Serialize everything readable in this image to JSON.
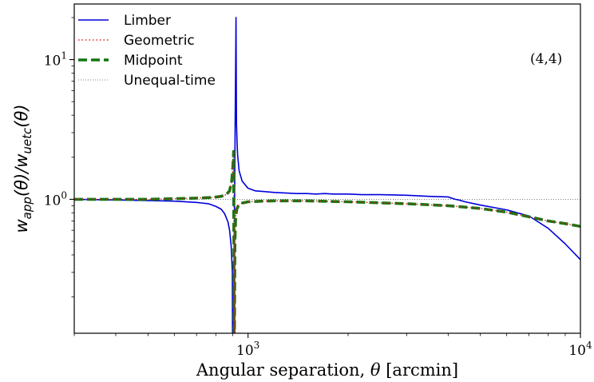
{
  "chart_data": {
    "type": "line",
    "x_scale": "log",
    "y_scale": "log",
    "xlim": [
      300,
      10000
    ],
    "ylim": [
      0.11,
      25
    ],
    "xlabel_prefix": "Angular separation, ",
    "xlabel_symbol": "θ",
    "xlabel_suffix": " [arcmin]",
    "ylabel": "wapp(θ)/wuetc(θ)",
    "ylabel_parts": {
      "w1": "w",
      "sub1": "app",
      "mid": "(θ)/",
      "w2": "w",
      "sub2": "uetc",
      "end": "(θ)"
    },
    "x_ticks": [
      {
        "base": "10",
        "exp": "3",
        "value": 1000
      },
      {
        "base": "10",
        "exp": "4",
        "value": 10000
      }
    ],
    "y_ticks": [
      {
        "base": "10",
        "exp": "0",
        "value": 1
      },
      {
        "base": "10",
        "exp": "1",
        "value": 10
      }
    ],
    "annotation": "(4,4)",
    "legend_position": "top-left",
    "grid": false,
    "series": [
      {
        "name": "Limber",
        "color": "#0000dd",
        "style": "solid",
        "x": [
          300,
          400,
          500,
          600,
          700,
          760,
          800,
          830,
          850,
          870,
          880,
          890,
          897,
          898,
          905,
          915,
          918,
          920,
          923,
          927,
          930,
          940,
          960,
          1000,
          1050,
          1100,
          1200,
          1400,
          1500,
          1600,
          1700,
          1800,
          2000,
          2200,
          2500,
          3000,
          3500,
          4000,
          4200,
          4300,
          4500,
          5000,
          6000,
          7000,
          8000,
          9000,
          10000
        ],
        "y": [
          1.0,
          0.99,
          0.98,
          0.97,
          0.95,
          0.93,
          0.89,
          0.85,
          0.79,
          0.69,
          0.6,
          0.46,
          0.3,
          0.11,
          0.11,
          4.0,
          10.0,
          20.0,
          3.5,
          2.5,
          2.1,
          1.6,
          1.35,
          1.2,
          1.15,
          1.14,
          1.12,
          1.1,
          1.1,
          1.09,
          1.1,
          1.09,
          1.09,
          1.08,
          1.08,
          1.07,
          1.05,
          1.04,
          1.0,
          0.99,
          0.96,
          0.91,
          0.84,
          0.76,
          0.62,
          0.48,
          0.37
        ]
      },
      {
        "name": "Geometric",
        "color": "#dd2222",
        "style": "dotted",
        "x": [
          300,
          400,
          500,
          600,
          700,
          780,
          830,
          860,
          880,
          893,
          900,
          905,
          908,
          910,
          913,
          918,
          925,
          935,
          960,
          1000,
          1100,
          1200,
          1500,
          2000,
          3000,
          4000,
          5000,
          6000,
          7000,
          8000,
          9000,
          10000
        ],
        "y": [
          1.0,
          1.0,
          1.0,
          1.01,
          1.02,
          1.03,
          1.05,
          1.08,
          1.15,
          1.35,
          1.7,
          2.2,
          0.11,
          0.11,
          0.5,
          0.75,
          0.85,
          0.9,
          0.94,
          0.96,
          0.97,
          0.975,
          0.975,
          0.96,
          0.93,
          0.9,
          0.86,
          0.81,
          0.75,
          0.7,
          0.67,
          0.64
        ]
      },
      {
        "name": "Midpoint",
        "color": "#117711",
        "style": "dashed",
        "x": [
          300,
          400,
          500,
          600,
          700,
          780,
          830,
          860,
          880,
          893,
          900,
          905,
          908,
          910,
          913,
          918,
          925,
          935,
          960,
          1000,
          1100,
          1200,
          1500,
          2000,
          3000,
          4000,
          5000,
          6000,
          7000,
          8000,
          9000,
          10000
        ],
        "y": [
          1.0,
          1.0,
          1.0,
          1.01,
          1.02,
          1.03,
          1.05,
          1.08,
          1.15,
          1.35,
          1.7,
          2.2,
          0.11,
          0.11,
          0.5,
          0.75,
          0.85,
          0.9,
          0.94,
          0.96,
          0.97,
          0.975,
          0.975,
          0.96,
          0.93,
          0.9,
          0.86,
          0.81,
          0.75,
          0.7,
          0.67,
          0.64
        ]
      },
      {
        "name": "Unequal-time",
        "color": "#555555",
        "style": "fine-dotted",
        "x": [
          300,
          10000
        ],
        "y": [
          1.0,
          1.0
        ]
      }
    ]
  }
}
